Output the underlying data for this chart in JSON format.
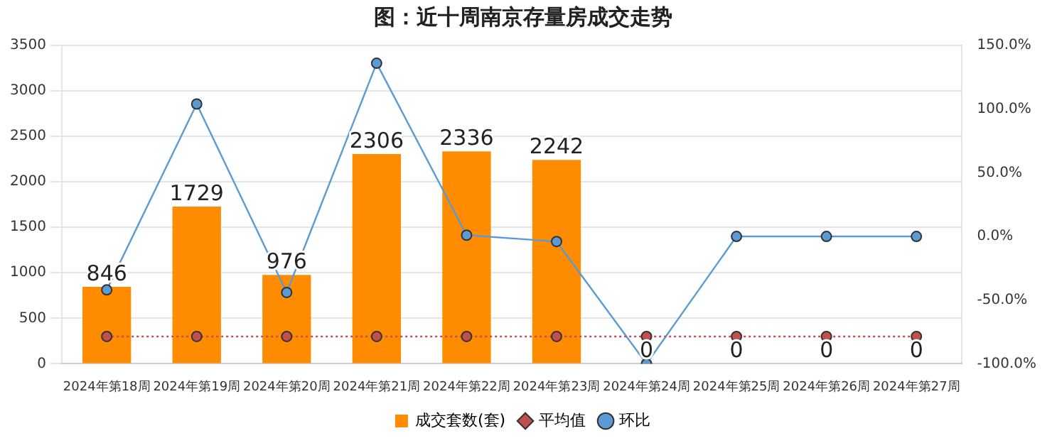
{
  "chart_data": {
    "type": "bar",
    "title": "图：近十周南京存量房成交走势",
    "categories": [
      "2024年第18周",
      "2024年第19周",
      "2024年第20周",
      "2024年第21周",
      "2024年第22周",
      "2024年第23周",
      "2024年第24周",
      "2024年第25周",
      "2024年第26周",
      "2024年第27周"
    ],
    "series": [
      {
        "name": "成交套数(套)",
        "color": "#ff8c00",
        "values": [
          846,
          1729,
          976,
          2306,
          2336,
          2242,
          0,
          0,
          0,
          0
        ],
        "value_labels": [
          "846",
          "1729",
          "976",
          "2306",
          "2336",
          "2242",
          "0",
          "0",
          "0",
          "0"
        ]
      },
      {
        "name": "平均值",
        "type": "line",
        "color": "#c0504d",
        "line_style": "dotted",
        "marker": "circle",
        "values": [
          300,
          300,
          300,
          300,
          300,
          300,
          300,
          300,
          300,
          300
        ]
      },
      {
        "name": "环比",
        "type": "line",
        "axis": "y2",
        "color": "#5b9bd5",
        "line_style": "solid",
        "marker": "circle",
        "values": [
          -42,
          104,
          -44,
          136,
          1,
          -4,
          -100,
          0,
          0,
          0
        ]
      }
    ],
    "ylim": [
      0,
      3500
    ],
    "yticks": [
      0,
      500,
      1000,
      1500,
      2000,
      2500,
      3000,
      3500
    ],
    "y2lim": [
      -100,
      150
    ],
    "y2ticks": [
      {
        "value": -100,
        "label": "-100.0%"
      },
      {
        "value": -50,
        "label": "-50.0%"
      },
      {
        "value": 0,
        "label": "0.0%"
      },
      {
        "value": 50,
        "label": "50.0%"
      },
      {
        "value": 100,
        "label": "100.0%"
      },
      {
        "value": 150,
        "label": "150.0%"
      }
    ],
    "grid": "y",
    "legend": "bottom"
  }
}
